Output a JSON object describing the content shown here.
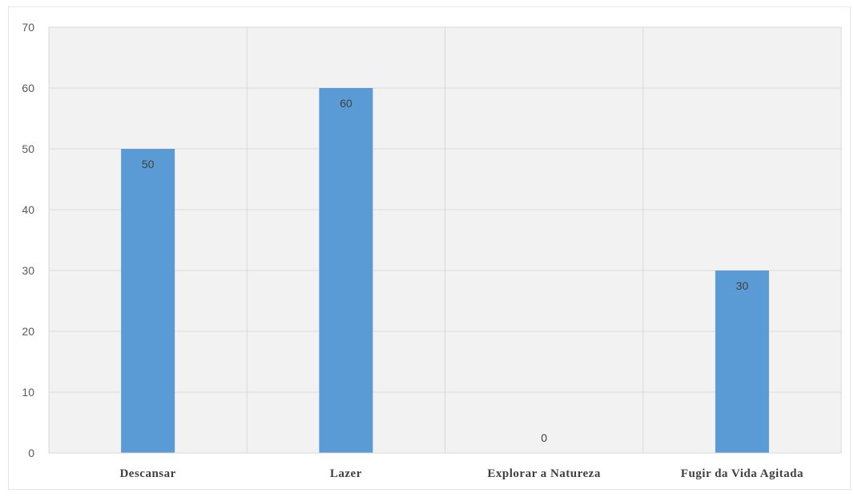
{
  "chart_data": {
    "type": "bar",
    "title": "",
    "xlabel": "",
    "ylabel": "",
    "categories": [
      "Descansar",
      "Lazer",
      "Explorar a Natureza",
      "Fugir da Vida Agitada"
    ],
    "values": [
      50,
      60,
      0,
      30
    ],
    "data_labels": [
      "50",
      "60",
      "0",
      "30"
    ],
    "ylim": [
      0,
      70
    ],
    "yticks": [
      0,
      10,
      20,
      30,
      40,
      50,
      60,
      70
    ],
    "ytick_labels": [
      "0",
      "10",
      "20",
      "30",
      "40",
      "50",
      "60",
      "70"
    ],
    "grid": true,
    "vertical_category_separators": true,
    "legend": "none",
    "bar_color": "#5b9bd5",
    "grid_color": "#d9d9d9",
    "plot_background": "#f2f2f2"
  }
}
